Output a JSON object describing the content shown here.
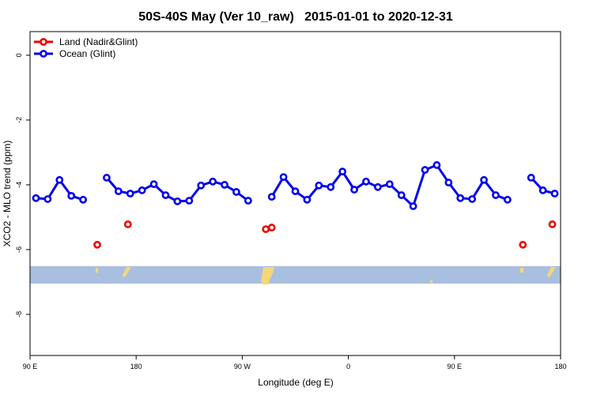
{
  "chart_data": {
    "type": "line",
    "title": "50S-40S May (Ver 10_raw)   2015-01-01 to 2020-12-31",
    "xlabel": "Longitude (deg E)",
    "ylabel": "XCO2 - MLO trend (ppm)",
    "xlim": [
      90,
      540
    ],
    "ylim": [
      -9.27,
      0.73
    ],
    "xticks": [
      {
        "value": 90,
        "label": "90 E"
      },
      {
        "value": 180,
        "label": "180"
      },
      {
        "value": 270,
        "label": "90 W"
      },
      {
        "value": 360,
        "label": "0"
      },
      {
        "value": 450,
        "label": "90 E"
      },
      {
        "value": 540,
        "label": "180"
      }
    ],
    "yticks": [
      0,
      -2,
      -4,
      -6,
      -8
    ],
    "legend": "top-left",
    "band": {
      "ylim": [
        -6.51,
        -7.05
      ],
      "color": "#a9bfdf"
    },
    "series": [
      {
        "name": "Land (Nadir&Glint)",
        "color": "#ee0000",
        "lines": false,
        "x": [
          147,
          173,
          290,
          295,
          508,
          533
        ],
        "values": [
          -5.85,
          -5.22,
          -5.37,
          -5.32,
          -5.85,
          -5.22
        ]
      },
      {
        "name": "Ocean (Glint)",
        "color": "#0000ee",
        "lines": true,
        "x": [
          95,
          105,
          115,
          125,
          135,
          145,
          155,
          165,
          175,
          185,
          195,
          205,
          215,
          225,
          235,
          245,
          255,
          265,
          275,
          285,
          295,
          305,
          315,
          325,
          335,
          345,
          355,
          365,
          375,
          385,
          395,
          405,
          415,
          425,
          435,
          445,
          455,
          465,
          475,
          485,
          495,
          505,
          515,
          525,
          535
        ],
        "values": [
          -4.41,
          -4.44,
          -3.85,
          -4.34,
          -4.46,
          null,
          -3.78,
          -4.2,
          -4.27,
          -4.17,
          -3.98,
          -4.32,
          -4.51,
          -4.49,
          -4.02,
          -3.9,
          -4.0,
          -4.22,
          -4.49,
          null,
          -4.37,
          -3.76,
          -4.2,
          -4.46,
          -4.02,
          -4.07,
          -3.59,
          -4.15,
          -3.9,
          -4.07,
          -3.98,
          -4.32,
          -4.66,
          -3.54,
          -3.39,
          -3.93,
          -4.41,
          -4.44,
          -3.85,
          -4.32,
          -4.46,
          null,
          -3.78,
          -4.17,
          -4.27
        ]
      }
    ]
  }
}
